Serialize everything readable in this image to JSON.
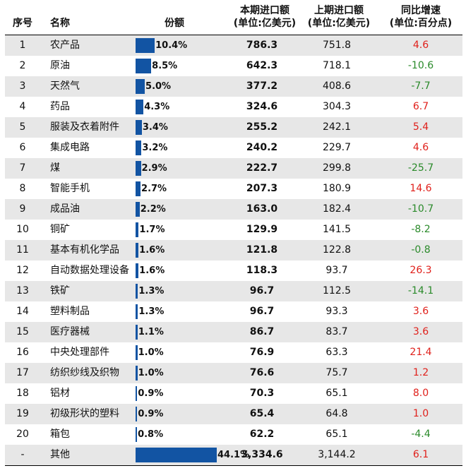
{
  "headers": {
    "no": "序号",
    "name": "名称",
    "share": "份额",
    "current": [
      "本期进口额",
      "(单位:亿美元)"
    ],
    "previous": [
      "上期进口额",
      "(单位:亿美元)"
    ],
    "yoy": [
      "同比增速",
      "(单位:百分点)"
    ]
  },
  "colors": {
    "bar": "#1254a3",
    "positive": "#e0201b",
    "negative": "#2a8a2a",
    "stripe": "#e7e7e7"
  },
  "chart_data": {
    "type": "table",
    "title": "",
    "columns": [
      "序号",
      "名称",
      "份额",
      "本期进口额 (单位:亿美元)",
      "上期进口额 (单位:亿美元)",
      "同比增速 (单位:百分点)"
    ],
    "rows": [
      {
        "no": "1",
        "name": "农产品",
        "share": 10.4,
        "share_label": "10.4%",
        "current": "786.3",
        "previous": "751.8",
        "yoy": "4.6"
      },
      {
        "no": "2",
        "name": "原油",
        "share": 8.5,
        "share_label": "8.5%",
        "current": "642.3",
        "previous": "718.1",
        "yoy": "-10.6"
      },
      {
        "no": "3",
        "name": "天然气",
        "share": 5.0,
        "share_label": "5.0%",
        "current": "377.2",
        "previous": "408.6",
        "yoy": "-7.7"
      },
      {
        "no": "4",
        "name": "药品",
        "share": 4.3,
        "share_label": "4.3%",
        "current": "324.6",
        "previous": "304.3",
        "yoy": "6.7"
      },
      {
        "no": "5",
        "name": "服装及衣着附件",
        "share": 3.4,
        "share_label": "3.4%",
        "current": "255.2",
        "previous": "242.1",
        "yoy": "5.4"
      },
      {
        "no": "6",
        "name": "集成电路",
        "share": 3.2,
        "share_label": "3.2%",
        "current": "240.2",
        "previous": "229.7",
        "yoy": "4.6"
      },
      {
        "no": "7",
        "name": "煤",
        "share": 2.9,
        "share_label": "2.9%",
        "current": "222.7",
        "previous": "299.8",
        "yoy": "-25.7"
      },
      {
        "no": "8",
        "name": "智能手机",
        "share": 2.7,
        "share_label": "2.7%",
        "current": "207.3",
        "previous": "180.9",
        "yoy": "14.6"
      },
      {
        "no": "9",
        "name": "成品油",
        "share": 2.2,
        "share_label": "2.2%",
        "current": "163.0",
        "previous": "182.4",
        "yoy": "-10.7"
      },
      {
        "no": "10",
        "name": "铜矿",
        "share": 1.7,
        "share_label": "1.7%",
        "current": "129.9",
        "previous": "141.5",
        "yoy": "-8.2"
      },
      {
        "no": "11",
        "name": "基本有机化学品",
        "share": 1.6,
        "share_label": "1.6%",
        "current": "121.8",
        "previous": "122.8",
        "yoy": "-0.8"
      },
      {
        "no": "12",
        "name": "自动数据处理设备",
        "share": 1.6,
        "share_label": "1.6%",
        "current": "118.3",
        "previous": "93.7",
        "yoy": "26.3"
      },
      {
        "no": "13",
        "name": "铁矿",
        "share": 1.3,
        "share_label": "1.3%",
        "current": "96.7",
        "previous": "112.5",
        "yoy": "-14.1"
      },
      {
        "no": "14",
        "name": "塑料制品",
        "share": 1.3,
        "share_label": "1.3%",
        "current": "96.7",
        "previous": "93.3",
        "yoy": "3.6"
      },
      {
        "no": "15",
        "name": "医疗器械",
        "share": 1.1,
        "share_label": "1.1%",
        "current": "86.7",
        "previous": "83.7",
        "yoy": "3.6"
      },
      {
        "no": "16",
        "name": "中央处理部件",
        "share": 1.0,
        "share_label": "1.0%",
        "current": "76.9",
        "previous": "63.3",
        "yoy": "21.4"
      },
      {
        "no": "17",
        "name": "纺织纱线及织物",
        "share": 1.0,
        "share_label": "1.0%",
        "current": "76.6",
        "previous": "75.7",
        "yoy": "1.2"
      },
      {
        "no": "18",
        "name": "铝材",
        "share": 0.9,
        "share_label": "0.9%",
        "current": "70.3",
        "previous": "65.1",
        "yoy": "8.0"
      },
      {
        "no": "19",
        "name": "初级形状的塑料",
        "share": 0.9,
        "share_label": "0.9%",
        "current": "65.4",
        "previous": "64.8",
        "yoy": "1.0"
      },
      {
        "no": "20",
        "name": "箱包",
        "share": 0.8,
        "share_label": "0.8%",
        "current": "62.2",
        "previous": "65.1",
        "yoy": "-4.4"
      },
      {
        "no": "-",
        "name": "其他",
        "share": 44.1,
        "share_label": "44.1%",
        "current": "3,334.6",
        "previous": "3,144.2",
        "yoy": "6.1"
      }
    ]
  }
}
